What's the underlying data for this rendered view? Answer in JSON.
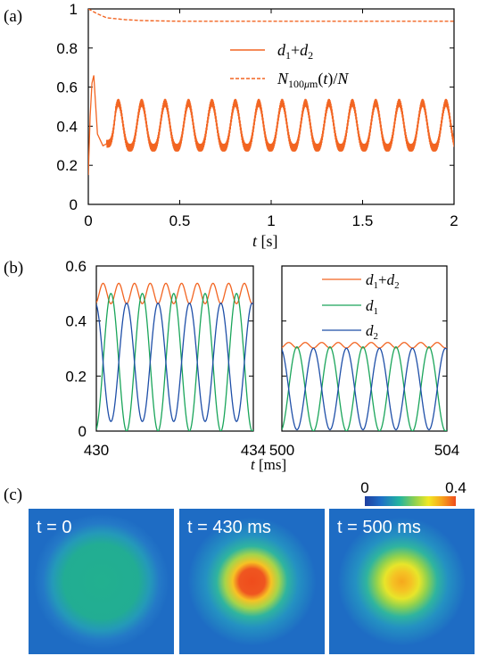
{
  "panels": {
    "a": "(a)",
    "b": "(b)",
    "c": "(c)"
  },
  "chart_data": [
    {
      "type": "line",
      "panel": "(a)",
      "xlabel_italic": "t",
      "xlabel_unit": "[s]",
      "xlim": [
        0,
        2
      ],
      "ylim": [
        0,
        1
      ],
      "xticks": [
        "0",
        "0.5",
        "1",
        "1.5",
        "2"
      ],
      "yticks": [
        "0",
        "0.2",
        "0.4",
        "0.6",
        "0.8",
        "1"
      ],
      "legend_position": "top-right",
      "series": [
        {
          "name": "d1+d2",
          "color": "#f26522",
          "style": "solid",
          "description": "sharp initial peak then periodic oscillation",
          "x": [
            0.0,
            0.01,
            0.02,
            0.03,
            0.05,
            0.08,
            0.12
          ],
          "y": [
            0.15,
            0.45,
            0.62,
            0.66,
            0.36,
            0.3,
            0.32
          ],
          "oscillation": {
            "start": 0.1,
            "period": 0.128,
            "min": 0.29,
            "max": 0.52,
            "fast_ripple_amplitude": 0.02
          }
        },
        {
          "name": "N100μm(t)/N",
          "color": "#f26522",
          "style": "dashed",
          "x": [
            0.0,
            0.05,
            0.1,
            0.2,
            0.3,
            0.5,
            1.0,
            2.0
          ],
          "y": [
            1.0,
            0.975,
            0.955,
            0.945,
            0.94,
            0.937,
            0.937,
            0.937
          ]
        }
      ]
    },
    {
      "type": "line",
      "panel": "(b) left",
      "xlim": [
        430,
        434
      ],
      "ylim": [
        0,
        0.6
      ],
      "xticks": [
        "430",
        "434"
      ],
      "yticks": [
        "0",
        "0.2",
        "0.4",
        "0.6"
      ],
      "oscillation_period_ms": 0.8,
      "series": [
        {
          "name": "d1+d2",
          "color": "#f26522",
          "center": 0.5,
          "amplitude": 0.037
        },
        {
          "name": "d1",
          "color": "#1aa55a",
          "center": 0.25,
          "amplitude": 0.25
        },
        {
          "name": "d2",
          "color": "#1f4fa8",
          "center": 0.25,
          "amplitude": 0.215
        }
      ]
    },
    {
      "type": "line",
      "panel": "(b) right",
      "xlim": [
        500,
        504
      ],
      "ylim": [
        0,
        0.6
      ],
      "xticks": [
        "500",
        "504"
      ],
      "xlabel_italic": "t",
      "xlabel_unit": "[ms]",
      "legend_position": "top-right",
      "oscillation_period_ms": 0.8,
      "series": [
        {
          "name": "d1+d2",
          "color": "#f26522",
          "center": 0.312,
          "amplitude": 0.01
        },
        {
          "name": "d1",
          "color": "#1aa55a",
          "center": 0.153,
          "amplitude": 0.153
        },
        {
          "name": "d2",
          "color": "#1f4fa8",
          "center": 0.153,
          "amplitude": 0.148
        }
      ]
    },
    {
      "type": "heatmap",
      "panel": "(c)",
      "colorbar": {
        "min_label": "0",
        "max_label": "0.4",
        "colors": [
          "#1f3fa0",
          "#1e6fc7",
          "#22b4a0",
          "#8fd14f",
          "#f2e824",
          "#f7a21b",
          "#ef4c1c"
        ]
      },
      "images": [
        {
          "label": "t = 0",
          "center_value": 0.18,
          "core": false
        },
        {
          "label": "t = 430 ms",
          "center_value": 0.4,
          "core": true
        },
        {
          "label": "t = 500 ms",
          "center_value": 0.32,
          "core": true
        }
      ]
    }
  ]
}
